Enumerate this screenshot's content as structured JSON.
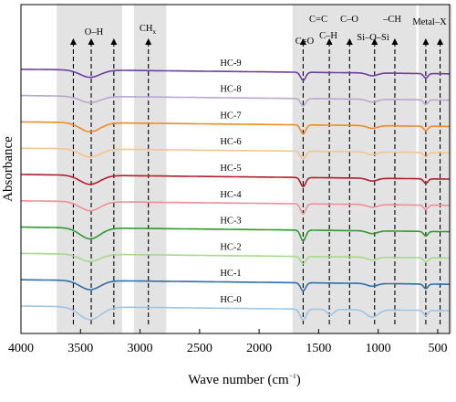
{
  "chart_data": {
    "type": "line",
    "title": "",
    "xlabel": "Wave number (cm",
    "xlabel_sup": "−1",
    "xlabel_close": ")",
    "ylabel": "Absorbance",
    "xlim": [
      4000,
      400
    ],
    "x_ticks": [
      4000,
      3500,
      3000,
      2500,
      2000,
      1500,
      1000,
      500
    ],
    "y_ticks": [],
    "grid": false,
    "shaded_regions": [
      [
        3700,
        3150
      ],
      [
        3050,
        2780
      ],
      [
        1720,
        680
      ],
      [
        660,
        380
      ]
    ],
    "annotations": [
      {
        "label": "O–H",
        "x": [
          3560,
          3410,
          3220
        ]
      },
      {
        "label": "CH",
        "label_sub": "x",
        "x": [
          2930
        ]
      },
      {
        "label": "C=O",
        "x": [
          1630
        ]
      },
      {
        "label": "C=C",
        "x": []
      },
      {
        "label": "C–H",
        "x": [
          1410
        ]
      },
      {
        "label": "C–O",
        "x": [
          1240
        ]
      },
      {
        "label": "Si–O–Si",
        "x": [
          1030
        ]
      },
      {
        "label": "–CH",
        "x": [
          860
        ]
      },
      {
        "label": "Metal–X",
        "x": [
          600,
          480
        ]
      }
    ],
    "series": [
      {
        "name": "HC-9",
        "color": "#6b3fa0",
        "level": 0.9,
        "dips": [
          [
            3420,
            8,
            120
          ],
          [
            1630,
            9,
            30
          ],
          [
            1050,
            3,
            60
          ],
          [
            600,
            5,
            25
          ]
        ]
      },
      {
        "name": "HC-8",
        "color": "#b6a8d0",
        "level": 0.8,
        "dips": [
          [
            3420,
            7,
            120
          ],
          [
            1630,
            8,
            30
          ],
          [
            1050,
            3,
            60
          ],
          [
            600,
            5,
            25
          ]
        ]
      },
      {
        "name": "HC-7",
        "color": "#f08a24",
        "level": 0.7,
        "dips": [
          [
            3420,
            10,
            120
          ],
          [
            1630,
            10,
            30
          ],
          [
            1050,
            3,
            60
          ],
          [
            600,
            5,
            25
          ]
        ]
      },
      {
        "name": "HC-6",
        "color": "#f6c48c",
        "level": 0.6,
        "dips": [
          [
            3420,
            9,
            120
          ],
          [
            1630,
            9,
            30
          ],
          [
            1050,
            3,
            60
          ],
          [
            600,
            5,
            25
          ]
        ]
      },
      {
        "name": "HC-5",
        "color": "#b01e2a",
        "level": 0.5,
        "dips": [
          [
            3420,
            10,
            120
          ],
          [
            1630,
            10,
            30
          ],
          [
            1050,
            3,
            60
          ],
          [
            600,
            5,
            25
          ]
        ]
      },
      {
        "name": "HC-4",
        "color": "#f08f98",
        "level": 0.4,
        "dips": [
          [
            3420,
            10,
            120
          ],
          [
            1630,
            11,
            30
          ],
          [
            1050,
            3,
            60
          ],
          [
            600,
            5,
            25
          ]
        ]
      },
      {
        "name": "HC-3",
        "color": "#2e9a2e",
        "level": 0.3,
        "dips": [
          [
            3420,
            12,
            120
          ],
          [
            1630,
            12,
            30
          ],
          [
            1050,
            3,
            60
          ],
          [
            600,
            5,
            25
          ]
        ]
      },
      {
        "name": "HC-2",
        "color": "#a6d98a",
        "level": 0.2,
        "dips": [
          [
            3420,
            8,
            120
          ],
          [
            1630,
            8,
            30
          ],
          [
            1050,
            3,
            60
          ],
          [
            600,
            5,
            25
          ]
        ]
      },
      {
        "name": "HC-1",
        "color": "#2f6fa6",
        "level": 0.1,
        "dips": [
          [
            3420,
            10,
            120
          ],
          [
            1630,
            9,
            30
          ],
          [
            1050,
            3,
            60
          ],
          [
            600,
            5,
            25
          ]
        ]
      },
      {
        "name": "HC-0",
        "color": "#9ec5e3",
        "level": 0.0,
        "dips": [
          [
            3420,
            14,
            130
          ],
          [
            1630,
            12,
            35
          ],
          [
            1400,
            6,
            40
          ],
          [
            1050,
            8,
            70
          ],
          [
            600,
            6,
            25
          ]
        ]
      }
    ]
  }
}
